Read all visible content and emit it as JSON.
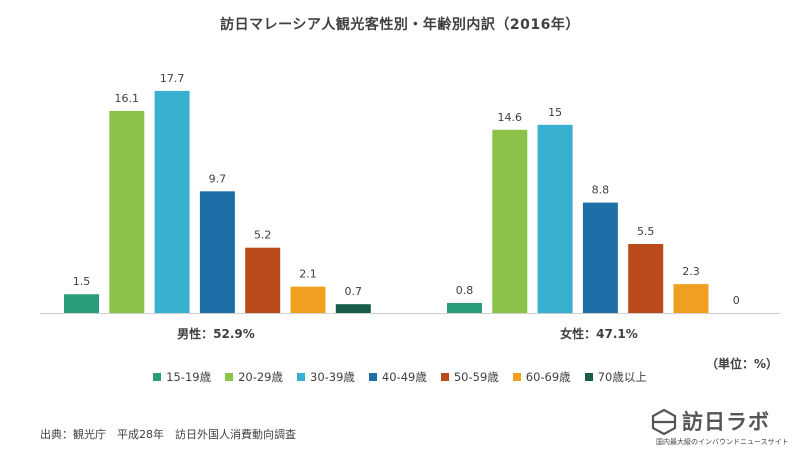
{
  "chart_data": {
    "type": "bar",
    "title": "訪日マレーシア人観光客性別・年齢別内訳（2016年）",
    "groups": [
      "男性：52.9%",
      "女性：47.1%"
    ],
    "series": [
      {
        "name": "15-19歳",
        "color": "#2a9d7c",
        "values": [
          1.5,
          0.8
        ]
      },
      {
        "name": "20-29歳",
        "color": "#8bc34a",
        "values": [
          16.1,
          14.6
        ]
      },
      {
        "name": "30-39歳",
        "color": "#39b0d0",
        "values": [
          17.7,
          15
        ]
      },
      {
        "name": "40-49歳",
        "color": "#1e6fa8",
        "values": [
          9.7,
          8.8
        ]
      },
      {
        "name": "50-59歳",
        "color": "#b94a1a",
        "values": [
          5.2,
          5.5
        ]
      },
      {
        "name": "60-69歳",
        "color": "#f0a020",
        "values": [
          2.1,
          2.3
        ]
      },
      {
        "name": "70歳以上",
        "color": "#1a5c4a",
        "values": [
          0.7,
          0
        ]
      }
    ],
    "value_labels": [
      [
        "1.5",
        "16.1",
        "17.7",
        "9.7",
        "5.2",
        "2.1",
        "0.7"
      ],
      [
        "0.8",
        "14.6",
        "15",
        "8.8",
        "5.5",
        "2.3",
        "0"
      ]
    ],
    "ylim": [
      0,
      20
    ],
    "unit": "%",
    "legend_position": "bottom"
  },
  "unit_note": "（単位：%）",
  "source_note": "出典：観光庁　平成28年　訪日外国人消費動向調査",
  "brand": {
    "name": "訪日ラボ",
    "tagline": "国内最大級のインバウンドニュースサイト"
  }
}
